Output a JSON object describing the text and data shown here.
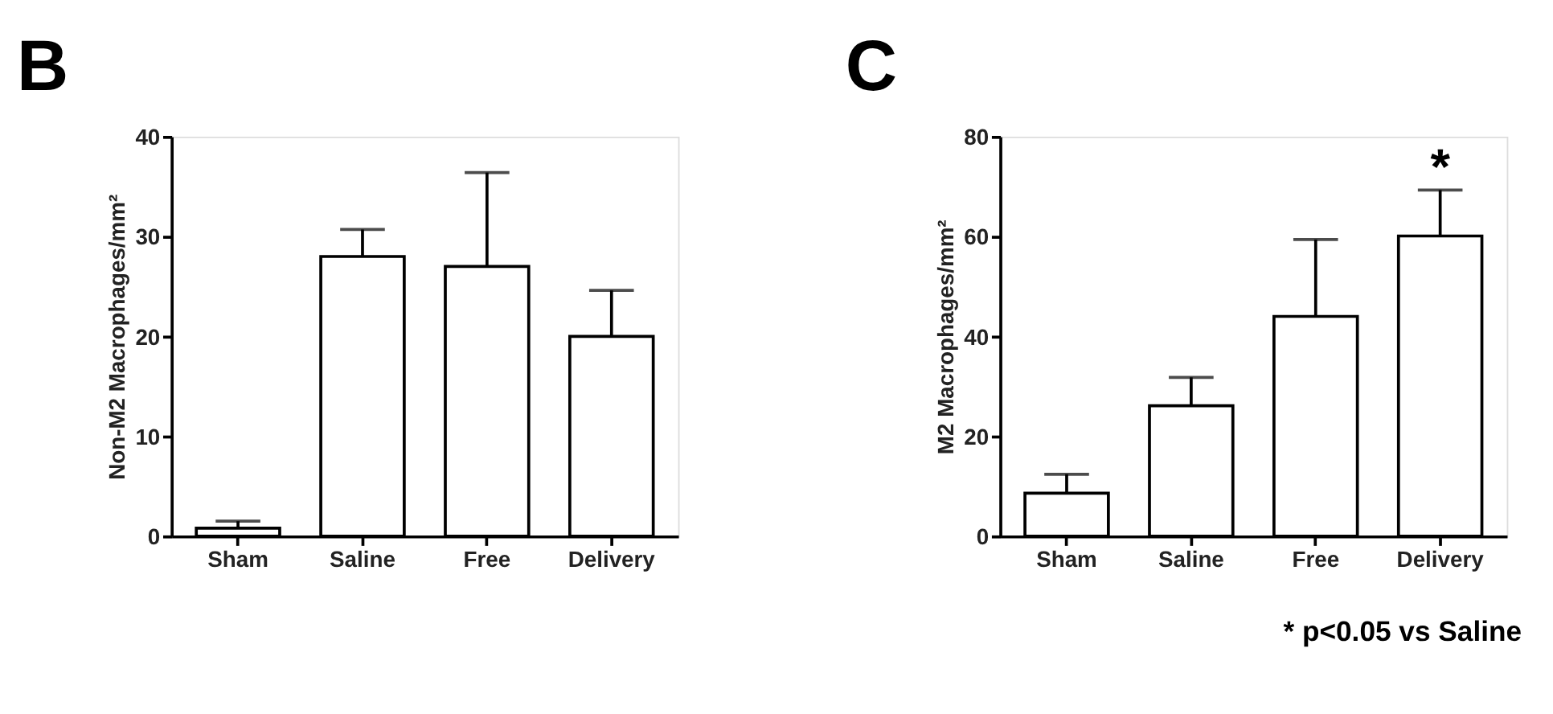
{
  "chart_data": [
    {
      "type": "bar",
      "title": "B",
      "ylabel": "Non-M2 Macrophages/mm²",
      "categories": [
        "Sham",
        "Saline",
        "Free",
        "Delivery"
      ],
      "values": [
        0.8,
        28,
        27,
        20
      ],
      "errors": [
        [
          0.8,
          1.5
        ],
        [
          28,
          30.7
        ],
        [
          27,
          36.4
        ],
        [
          20,
          24.6
        ]
      ],
      "color": "#ffffff",
      "ylim": [
        0,
        40
      ],
      "yticks": [
        0,
        10,
        20,
        30,
        40
      ],
      "grid": false
    },
    {
      "type": "bar",
      "title": "C",
      "ylabel": "M2 Macrophages/mm²",
      "categories": [
        "Sham",
        "Saline",
        "Free",
        "Delivery"
      ],
      "values": [
        8.6,
        26.1,
        44.0,
        60.1
      ],
      "errors": [
        [
          8.6,
          12.4
        ],
        [
          26.1,
          31.8
        ],
        [
          44.0,
          59.4
        ],
        [
          60.1,
          69.3
        ]
      ],
      "color": "#ffffff",
      "ylim": [
        0,
        80
      ],
      "yticks": [
        0,
        20,
        40,
        60,
        80
      ],
      "grid": false,
      "annotations": [
        "*",
        "* p<0.05 vs Saline"
      ]
    }
  ]
}
